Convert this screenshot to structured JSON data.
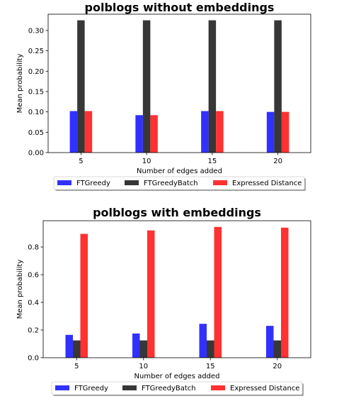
{
  "chart_data": [
    {
      "type": "bar",
      "title": "polblogs without embeddings",
      "xlabel": "Number of edges added",
      "ylabel": "Mean probability",
      "categories": [
        "5",
        "10",
        "15",
        "20"
      ],
      "ylim": [
        0,
        0.34
      ],
      "yticks": [
        "0.00",
        "0.05",
        "0.10",
        "0.15",
        "0.20",
        "0.25",
        "0.30"
      ],
      "legend_position": "below",
      "series": [
        {
          "name": "FTGreedy",
          "color": "#2020ff",
          "values": [
            0.102,
            0.092,
            0.102,
            0.1
          ]
        },
        {
          "name": "FTGreedyBatch",
          "color": "#262626",
          "values": [
            0.325,
            0.325,
            0.325,
            0.325
          ]
        },
        {
          "name": "Expressed Distance",
          "color": "#ff2020",
          "values": [
            0.102,
            0.092,
            0.102,
            0.1
          ]
        }
      ]
    },
    {
      "type": "bar",
      "title": "polblogs with embeddings",
      "xlabel": "Number of edges added",
      "ylabel": "Mean probability",
      "categories": [
        "5",
        "10",
        "15",
        "20"
      ],
      "ylim": [
        0,
        0.99
      ],
      "yticks": [
        "0.0",
        "0.2",
        "0.4",
        "0.6",
        "0.8"
      ],
      "legend_position": "below",
      "series": [
        {
          "name": "FTGreedy",
          "color": "#2020ff",
          "values": [
            0.165,
            0.175,
            0.245,
            0.23
          ]
        },
        {
          "name": "FTGreedyBatch",
          "color": "#262626",
          "values": [
            0.125,
            0.125,
            0.125,
            0.125
          ]
        },
        {
          "name": "Expressed Distance",
          "color": "#ff2020",
          "values": [
            0.895,
            0.92,
            0.945,
            0.94
          ]
        }
      ]
    }
  ]
}
